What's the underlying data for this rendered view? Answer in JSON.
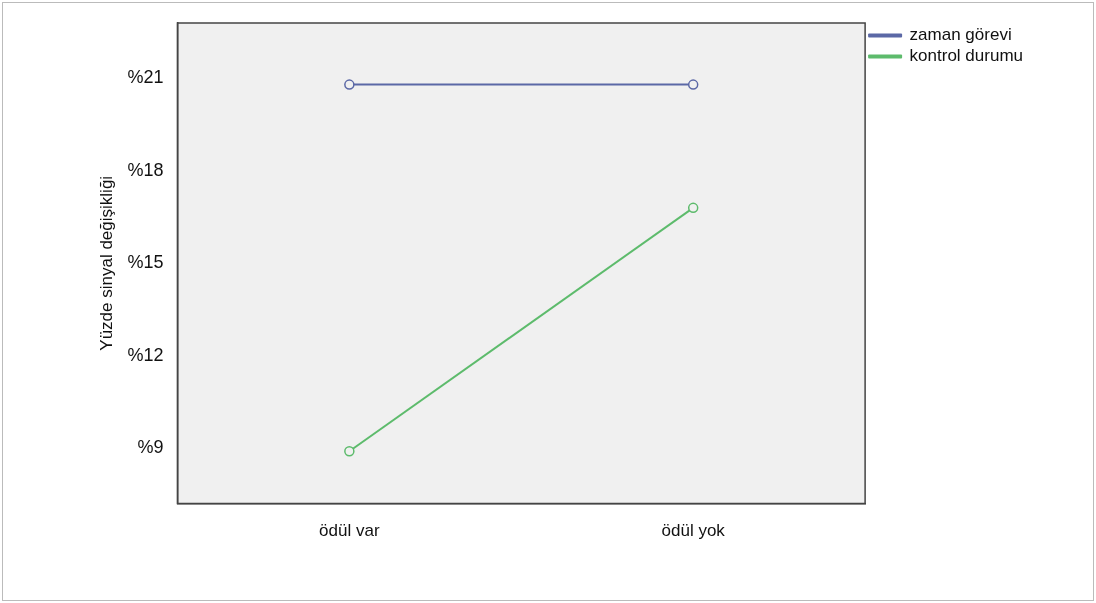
{
  "chart_data": {
    "type": "line",
    "ylabel": "Yüzde sinyal değişikliği",
    "categories": [
      "ödül var",
      "ödül yok"
    ],
    "series": [
      {
        "name": "zaman görevi",
        "color": "#5b68a6",
        "values": [
          20.8,
          20.8
        ]
      },
      {
        "name": "kontrol durumu",
        "color": "#5dbb6c",
        "values": [
          8.9,
          16.8
        ]
      }
    ],
    "ylim": [
      7.2,
      22.8
    ],
    "yticks": [
      {
        "value": 9,
        "label": "%9"
      },
      {
        "value": 12,
        "label": "%12"
      },
      {
        "value": 15,
        "label": "%15"
      },
      {
        "value": 18,
        "label": "%18"
      },
      {
        "value": 21,
        "label": "%21"
      }
    ],
    "grid": false,
    "legend": "top right",
    "marker": "circle",
    "line_style": "solid"
  }
}
